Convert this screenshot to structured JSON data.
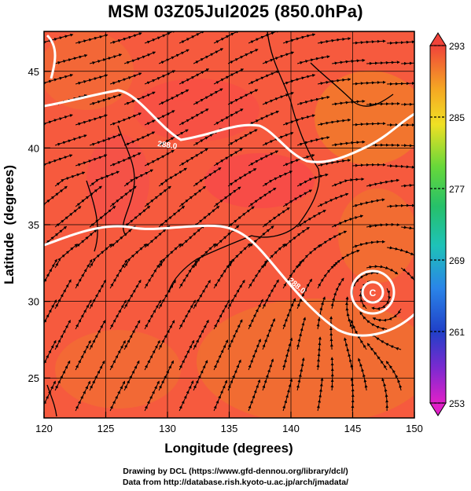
{
  "title": "MSM 03Z05Jul2025 (850.0hPa)",
  "credits": {
    "line1": "Drawing by DCL (https://www.gfd-dennou.org/library/dcl/)",
    "line2": "Data from http://database.rish.kyoto-u.ac.jp/arch/jmadata/"
  },
  "map": {
    "x_label": "Longitude (degrees)",
    "y_label": "Latitude  (degrees)",
    "lon_range": [
      120,
      150
    ],
    "lat_range": [
      22.4,
      47.6
    ],
    "lon_ticks": [
      "120",
      "125",
      "130",
      "135",
      "140",
      "145",
      "150"
    ],
    "lat_ticks": [
      "25",
      "30",
      "35",
      "40",
      "45"
    ],
    "grid": true,
    "isotherm_labels": [
      "288.0",
      "288.0"
    ],
    "typhoon_center_label": "C",
    "colors": {
      "fill": "#f65a3e",
      "warm": "#f27a2c",
      "isotherm": "#ffffff",
      "streamline": "#000000"
    }
  },
  "colorbar": {
    "min": 253,
    "max": 293,
    "tick_labels": [
      "293",
      "285",
      "277",
      "269",
      "261",
      "253"
    ]
  }
}
